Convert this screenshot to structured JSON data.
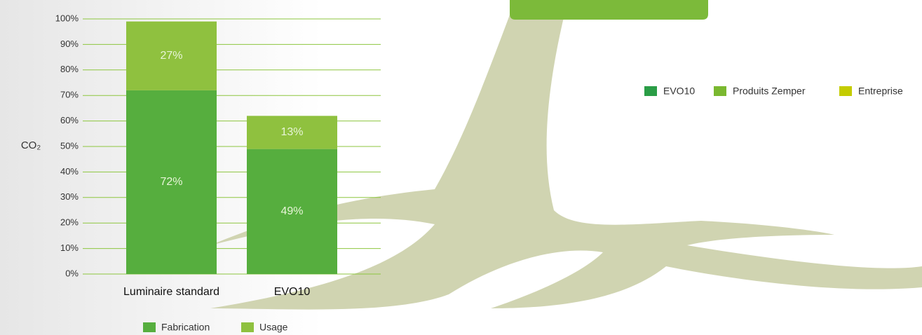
{
  "chart_data": {
    "type": "stacked_bar",
    "y_label": "CO₂",
    "categories": [
      "Luminaire standard",
      "EVO10"
    ],
    "series": [
      {
        "name": "Fabrication",
        "color": "#56ae3e",
        "values": [
          72,
          49
        ],
        "value_labels": [
          "72%",
          "49%"
        ]
      },
      {
        "name": "Usage",
        "color": "#8fc13f",
        "values": [
          27,
          13
        ],
        "value_labels": [
          "27%",
          "13%"
        ]
      }
    ],
    "ylim": [
      0,
      100
    ],
    "yticks": [
      {
        "value": 0,
        "label": "0%"
      },
      {
        "value": 10,
        "label": "10%"
      },
      {
        "value": 20,
        "label": "20%"
      },
      {
        "value": 30,
        "label": "30%"
      },
      {
        "value": 40,
        "label": "40%"
      },
      {
        "value": 50,
        "label": "50%"
      },
      {
        "value": 60,
        "label": "60%"
      },
      {
        "value": 70,
        "label": "70%"
      },
      {
        "value": 80,
        "label": "80%"
      },
      {
        "value": 90,
        "label": "90%"
      },
      {
        "value": 100,
        "label": "100%"
      }
    ],
    "grid": true,
    "grid_color": "#8dc63f"
  },
  "side_legend": [
    {
      "name": "EVO10",
      "color": "#2a9d46"
    },
    {
      "name": "Produits Zemper",
      "color": "#7ab830"
    },
    {
      "name": "Entreprise",
      "color": "#c4cc00"
    }
  ]
}
